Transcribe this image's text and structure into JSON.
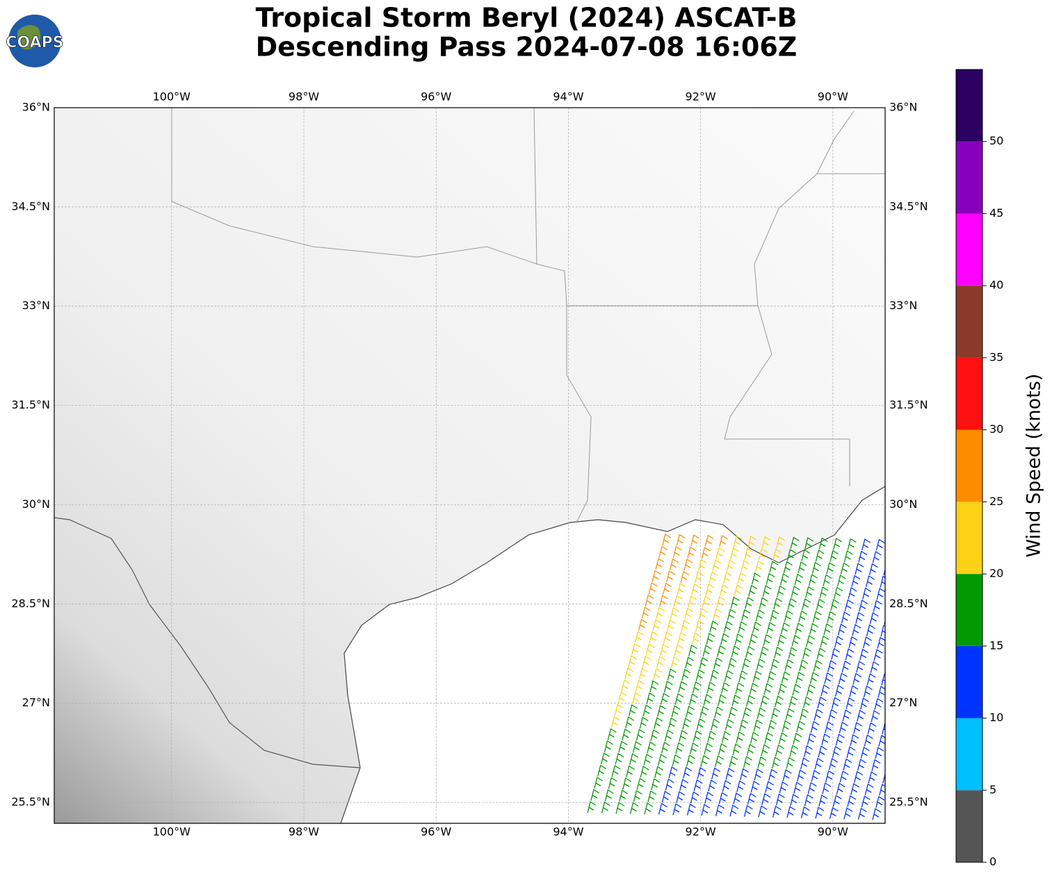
{
  "logo_text": "COAPS",
  "title": [
    "Tropical Storm Beryl (2024) ASCAT-B",
    "Descending Pass 2024-07-08 16:06Z"
  ],
  "map": {
    "xlim": [
      -101.775,
      -89.21
    ],
    "ylim": [
      25.185,
      36
    ],
    "xticks": [
      {
        "value": -100,
        "label": "100°W"
      },
      {
        "value": -98,
        "label": "98°W"
      },
      {
        "value": -96,
        "label": "96°W"
      },
      {
        "value": -94,
        "label": "94°W"
      },
      {
        "value": -92,
        "label": "92°W"
      },
      {
        "value": -90,
        "label": "90°W"
      }
    ],
    "yticks": [
      {
        "value": 25.5,
        "label": "25.5°N"
      },
      {
        "value": 27,
        "label": "27°N"
      },
      {
        "value": 28.5,
        "label": "28.5°N"
      },
      {
        "value": 30,
        "label": "30°N"
      },
      {
        "value": 31.5,
        "label": "31.5°N"
      },
      {
        "value": 33,
        "label": "33°N"
      },
      {
        "value": 34.5,
        "label": "34.5°N"
      },
      {
        "value": 36,
        "label": "36°N"
      }
    ],
    "grid": true
  },
  "colorbar": {
    "label": "Wind Speed (knots)",
    "lim": [
      0,
      55
    ],
    "ticks": [
      0,
      5,
      10,
      15,
      20,
      25,
      30,
      35,
      40,
      45,
      50
    ],
    "colors": [
      "#555555",
      "#00bfff",
      "#0033ff",
      "#009900",
      "#fcd116",
      "#ff8c00",
      "#ff1010",
      "#8b3a2a",
      "#ff00ff",
      "#8800bb",
      "#2a0060"
    ]
  }
}
